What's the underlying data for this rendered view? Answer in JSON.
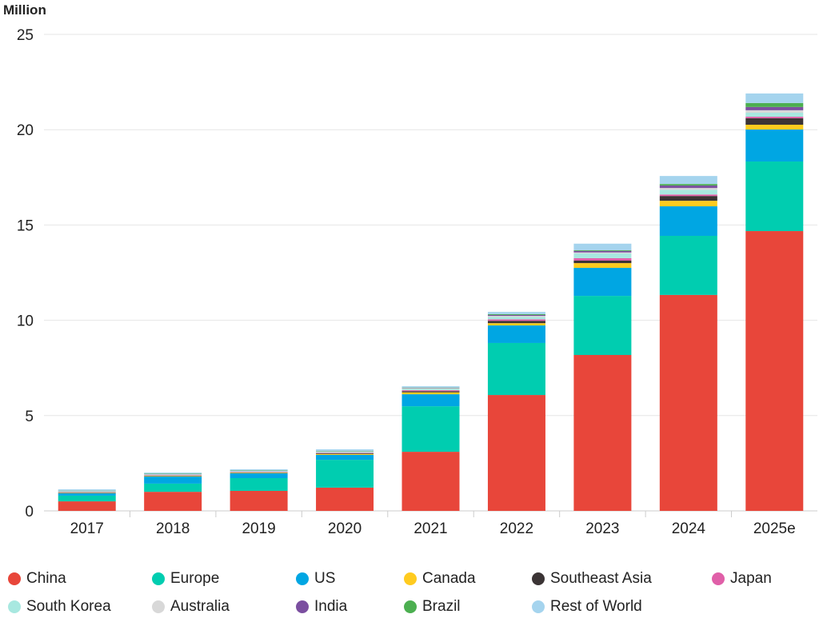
{
  "chart_data": {
    "type": "bar",
    "stacked": true,
    "title": "",
    "xlabel": "",
    "ylabel": "Million",
    "ylim": [
      0,
      25
    ],
    "yticks": [
      0,
      5,
      10,
      15,
      20,
      25
    ],
    "grid": true,
    "legend_position": "bottom",
    "categories": [
      "2017",
      "2018",
      "2019",
      "2020",
      "2021",
      "2022",
      "2023",
      "2024",
      "2025e"
    ],
    "series": [
      {
        "name": "China",
        "color": "#E8463A",
        "values": [
          0.5,
          1.0,
          1.05,
          1.22,
          3.1,
          6.08,
          8.18,
          11.33,
          14.68
        ]
      },
      {
        "name": "Europe",
        "color": "#00CDB0",
        "values": [
          0.3,
          0.43,
          0.67,
          1.46,
          2.39,
          2.73,
          3.1,
          3.1,
          3.65
        ]
      },
      {
        "name": "US",
        "color": "#00A6E3",
        "values": [
          0.12,
          0.37,
          0.25,
          0.26,
          0.63,
          0.92,
          1.47,
          1.55,
          1.68
        ]
      },
      {
        "name": "Canada",
        "color": "#FFCB1F",
        "values": [
          0.02,
          0.03,
          0.03,
          0.05,
          0.1,
          0.12,
          0.25,
          0.29,
          0.25
        ]
      },
      {
        "name": "Southeast Asia",
        "color": "#3B3435",
        "values": [
          0.02,
          0.02,
          0.02,
          0.03,
          0.06,
          0.12,
          0.13,
          0.25,
          0.34
        ]
      },
      {
        "name": "Japan",
        "color": "#E05FA8",
        "values": [
          0.02,
          0.02,
          0.02,
          0.03,
          0.05,
          0.08,
          0.13,
          0.08,
          0.08
        ]
      },
      {
        "name": "South Korea",
        "color": "#A8E8E0",
        "values": [
          0.03,
          0.03,
          0.03,
          0.05,
          0.07,
          0.12,
          0.25,
          0.25,
          0.21
        ]
      },
      {
        "name": "Australia",
        "color": "#D8D8D8",
        "values": [
          0.02,
          0.02,
          0.02,
          0.02,
          0.03,
          0.06,
          0.05,
          0.09,
          0.13
        ]
      },
      {
        "name": "India",
        "color": "#7B4FA0",
        "values": [
          0.01,
          0.01,
          0.01,
          0.01,
          0.02,
          0.05,
          0.08,
          0.13,
          0.17
        ]
      },
      {
        "name": "Brazil",
        "color": "#4CAF50",
        "values": [
          0.02,
          0.02,
          0.02,
          0.02,
          0.02,
          0.04,
          0.04,
          0.08,
          0.21
        ]
      },
      {
        "name": "Rest of World",
        "color": "#A5D4EE",
        "values": [
          0.07,
          0.06,
          0.06,
          0.08,
          0.07,
          0.12,
          0.34,
          0.42,
          0.5
        ]
      }
    ]
  }
}
